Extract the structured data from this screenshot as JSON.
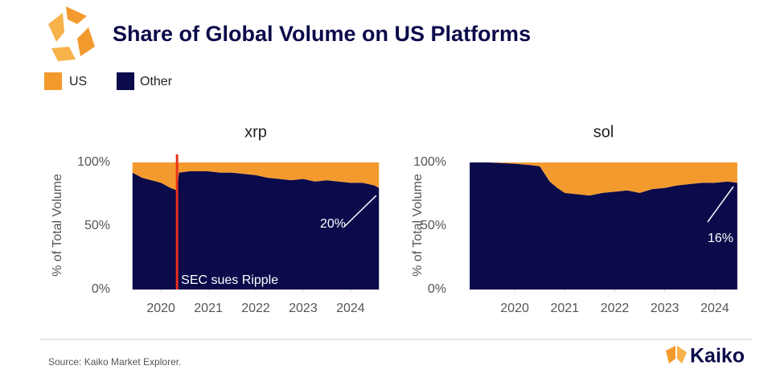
{
  "title": "Share of Global Volume on US Platforms",
  "source": "Source: Kaiko Market Explorer.",
  "brand": "Kaiko",
  "chart_data": [
    {
      "type": "area",
      "stacked": true,
      "title": "xrp",
      "y_label": "% of Total Volume",
      "x": [
        2019.4,
        2019.6,
        2019.8,
        2020.0,
        2020.2,
        2020.34,
        2020.38,
        2020.6,
        2020.8,
        2021.0,
        2021.25,
        2021.5,
        2021.75,
        2022.0,
        2022.25,
        2022.5,
        2022.75,
        2023.0,
        2023.25,
        2023.5,
        2023.75,
        2024.0,
        2024.25,
        2024.5,
        2024.6
      ],
      "series": [
        {
          "name": "Other",
          "color": "#0b0a4a",
          "values": [
            92,
            88,
            86,
            84,
            80,
            78,
            92,
            93,
            93,
            93,
            92,
            92,
            91,
            90,
            88,
            87,
            86,
            87,
            85,
            86,
            85,
            84,
            84,
            82,
            80
          ]
        },
        {
          "name": "US",
          "color": "#f39a2e",
          "values": [
            8,
            12,
            14,
            16,
            20,
            22,
            8,
            7,
            7,
            7,
            8,
            8,
            9,
            10,
            12,
            13,
            14,
            13,
            15,
            14,
            15,
            16,
            16,
            18,
            20
          ]
        }
      ],
      "xlim": [
        2019.37,
        2024.63
      ],
      "xticks": [
        2020,
        2021,
        2022,
        2023,
        2024
      ],
      "ylim": [
        0,
        100
      ],
      "yticks": [
        {
          "value": 0,
          "label": "0%"
        },
        {
          "value": 50,
          "label": "50%"
        },
        {
          "value": 100,
          "label": "100%"
        }
      ],
      "event": {
        "x": 2020.34,
        "label": "SEC sues Ripple",
        "color": "#e8321c"
      },
      "annotation": "20%"
    },
    {
      "type": "area",
      "stacked": true,
      "title": "sol",
      "y_label": "% of Total Volume",
      "x": [
        2019.1,
        2019.5,
        2020.0,
        2020.3,
        2020.5,
        2020.7,
        2020.85,
        2021.0,
        2021.25,
        2021.5,
        2021.75,
        2022.0,
        2022.25,
        2022.5,
        2022.75,
        2023.0,
        2023.25,
        2023.5,
        2023.75,
        2024.0,
        2024.25,
        2024.45
      ],
      "series": [
        {
          "name": "Other",
          "color": "#0b0a4a",
          "values": [
            100,
            100,
            99,
            98,
            97,
            85,
            80,
            76,
            75,
            74,
            76,
            77,
            78,
            76,
            79,
            80,
            82,
            83,
            84,
            84,
            85,
            84
          ]
        },
        {
          "name": "US",
          "color": "#f39a2e",
          "values": [
            0,
            0,
            1,
            2,
            3,
            15,
            20,
            24,
            25,
            26,
            24,
            23,
            22,
            24,
            21,
            20,
            18,
            17,
            16,
            16,
            15,
            16
          ]
        }
      ],
      "xlim": [
        2019.05,
        2024.5
      ],
      "xticks": [
        2020,
        2021,
        2022,
        2023,
        2024
      ],
      "ylim": [
        0,
        100
      ],
      "yticks": [
        {
          "value": 0,
          "label": "0%"
        },
        {
          "value": 50,
          "label": "50%"
        },
        {
          "value": 100,
          "label": "100%"
        }
      ],
      "annotation": "16%"
    }
  ]
}
